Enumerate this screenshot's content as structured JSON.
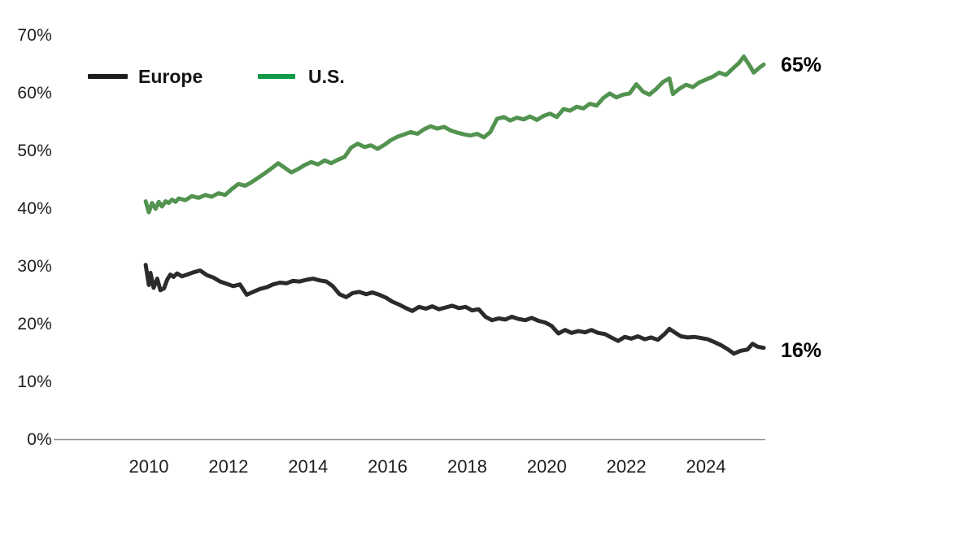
{
  "chart_data": {
    "type": "line",
    "title": "",
    "xlabel": "",
    "ylabel": "",
    "grid": false,
    "legend_position": "top-left-inside",
    "axis_color": "#8f8f8f",
    "xlim": [
      2009.8,
      2025.6
    ],
    "ylim": [
      0,
      70
    ],
    "x_ticks": [
      2010,
      2012,
      2014,
      2016,
      2018,
      2020,
      2022,
      2024
    ],
    "x_tick_labels": [
      "2010",
      "2012",
      "2014",
      "2016",
      "2018",
      "2020",
      "2022",
      "2024"
    ],
    "y_ticks": [
      0,
      10,
      20,
      30,
      40,
      50,
      60,
      70
    ],
    "y_tick_labels": [
      "0%",
      "10%",
      "20%",
      "30%",
      "40%",
      "50%",
      "60%",
      "70%"
    ],
    "series": [
      {
        "name": "Europe",
        "color": "#2b2b2d",
        "swatch_color": "#1d1d1f",
        "end_label": "16%",
        "points": [
          [
            2009.92,
            30.3
          ],
          [
            2010.0,
            26.8
          ],
          [
            2010.04,
            28.9
          ],
          [
            2010.12,
            26.3
          ],
          [
            2010.21,
            27.9
          ],
          [
            2010.29,
            25.9
          ],
          [
            2010.38,
            26.2
          ],
          [
            2010.46,
            27.7
          ],
          [
            2010.54,
            28.6
          ],
          [
            2010.62,
            28.2
          ],
          [
            2010.71,
            28.8
          ],
          [
            2010.83,
            28.3
          ],
          [
            2010.96,
            28.6
          ],
          [
            2011.12,
            29.0
          ],
          [
            2011.29,
            29.3
          ],
          [
            2011.46,
            28.5
          ],
          [
            2011.62,
            28.1
          ],
          [
            2011.79,
            27.4
          ],
          [
            2011.96,
            27.0
          ],
          [
            2012.12,
            26.6
          ],
          [
            2012.29,
            26.9
          ],
          [
            2012.46,
            25.1
          ],
          [
            2012.62,
            25.6
          ],
          [
            2012.79,
            26.1
          ],
          [
            2012.96,
            26.4
          ],
          [
            2013.12,
            26.9
          ],
          [
            2013.29,
            27.2
          ],
          [
            2013.46,
            27.1
          ],
          [
            2013.62,
            27.5
          ],
          [
            2013.79,
            27.4
          ],
          [
            2013.96,
            27.7
          ],
          [
            2014.12,
            27.9
          ],
          [
            2014.29,
            27.6
          ],
          [
            2014.46,
            27.4
          ],
          [
            2014.62,
            26.6
          ],
          [
            2014.79,
            25.2
          ],
          [
            2014.96,
            24.7
          ],
          [
            2015.12,
            25.4
          ],
          [
            2015.29,
            25.6
          ],
          [
            2015.46,
            25.2
          ],
          [
            2015.62,
            25.5
          ],
          [
            2015.79,
            25.1
          ],
          [
            2015.96,
            24.6
          ],
          [
            2016.12,
            23.9
          ],
          [
            2016.29,
            23.4
          ],
          [
            2016.46,
            22.8
          ],
          [
            2016.62,
            22.3
          ],
          [
            2016.79,
            23.0
          ],
          [
            2016.96,
            22.7
          ],
          [
            2017.12,
            23.1
          ],
          [
            2017.29,
            22.6
          ],
          [
            2017.46,
            22.9
          ],
          [
            2017.62,
            23.2
          ],
          [
            2017.79,
            22.8
          ],
          [
            2017.96,
            23.0
          ],
          [
            2018.12,
            22.4
          ],
          [
            2018.29,
            22.6
          ],
          [
            2018.46,
            21.3
          ],
          [
            2018.62,
            20.7
          ],
          [
            2018.79,
            21.0
          ],
          [
            2018.96,
            20.8
          ],
          [
            2019.12,
            21.3
          ],
          [
            2019.29,
            20.9
          ],
          [
            2019.46,
            20.7
          ],
          [
            2019.62,
            21.1
          ],
          [
            2019.79,
            20.6
          ],
          [
            2019.96,
            20.3
          ],
          [
            2020.12,
            19.7
          ],
          [
            2020.29,
            18.4
          ],
          [
            2020.46,
            19.0
          ],
          [
            2020.62,
            18.5
          ],
          [
            2020.79,
            18.8
          ],
          [
            2020.96,
            18.6
          ],
          [
            2021.12,
            19.0
          ],
          [
            2021.29,
            18.5
          ],
          [
            2021.46,
            18.3
          ],
          [
            2021.62,
            17.7
          ],
          [
            2021.79,
            17.1
          ],
          [
            2021.96,
            17.8
          ],
          [
            2022.12,
            17.5
          ],
          [
            2022.29,
            17.9
          ],
          [
            2022.46,
            17.4
          ],
          [
            2022.62,
            17.7
          ],
          [
            2022.79,
            17.3
          ],
          [
            2022.96,
            18.3
          ],
          [
            2023.08,
            19.2
          ],
          [
            2023.21,
            18.6
          ],
          [
            2023.37,
            17.9
          ],
          [
            2023.54,
            17.7
          ],
          [
            2023.71,
            17.8
          ],
          [
            2023.87,
            17.6
          ],
          [
            2024.04,
            17.4
          ],
          [
            2024.21,
            16.9
          ],
          [
            2024.37,
            16.4
          ],
          [
            2024.54,
            15.7
          ],
          [
            2024.7,
            14.9
          ],
          [
            2024.87,
            15.4
          ],
          [
            2025.04,
            15.6
          ],
          [
            2025.17,
            16.6
          ],
          [
            2025.3,
            16.1
          ],
          [
            2025.45,
            15.9
          ]
        ]
      },
      {
        "name": "U.S.",
        "color": "#52934f",
        "swatch_color": "#0e9a47",
        "end_label": "65%",
        "points": [
          [
            2009.92,
            41.3
          ],
          [
            2010.0,
            39.4
          ],
          [
            2010.08,
            41.0
          ],
          [
            2010.17,
            40.0
          ],
          [
            2010.25,
            41.2
          ],
          [
            2010.33,
            40.4
          ],
          [
            2010.42,
            41.3
          ],
          [
            2010.5,
            41.0
          ],
          [
            2010.58,
            41.6
          ],
          [
            2010.67,
            41.2
          ],
          [
            2010.75,
            41.8
          ],
          [
            2010.92,
            41.5
          ],
          [
            2011.08,
            42.2
          ],
          [
            2011.25,
            41.9
          ],
          [
            2011.42,
            42.4
          ],
          [
            2011.58,
            42.1
          ],
          [
            2011.75,
            42.7
          ],
          [
            2011.92,
            42.4
          ],
          [
            2012.08,
            43.4
          ],
          [
            2012.25,
            44.3
          ],
          [
            2012.42,
            44.0
          ],
          [
            2012.58,
            44.6
          ],
          [
            2012.75,
            45.4
          ],
          [
            2012.92,
            46.2
          ],
          [
            2013.08,
            47.0
          ],
          [
            2013.25,
            47.9
          ],
          [
            2013.42,
            47.1
          ],
          [
            2013.58,
            46.3
          ],
          [
            2013.75,
            46.9
          ],
          [
            2013.92,
            47.6
          ],
          [
            2014.08,
            48.1
          ],
          [
            2014.25,
            47.7
          ],
          [
            2014.42,
            48.4
          ],
          [
            2014.58,
            47.9
          ],
          [
            2014.75,
            48.5
          ],
          [
            2014.92,
            49.0
          ],
          [
            2015.08,
            50.6
          ],
          [
            2015.25,
            51.3
          ],
          [
            2015.42,
            50.7
          ],
          [
            2015.58,
            51.0
          ],
          [
            2015.75,
            50.4
          ],
          [
            2015.92,
            51.1
          ],
          [
            2016.08,
            51.9
          ],
          [
            2016.25,
            52.5
          ],
          [
            2016.42,
            52.9
          ],
          [
            2016.58,
            53.3
          ],
          [
            2016.75,
            53.0
          ],
          [
            2016.92,
            53.8
          ],
          [
            2017.08,
            54.3
          ],
          [
            2017.25,
            53.9
          ],
          [
            2017.42,
            54.2
          ],
          [
            2017.58,
            53.6
          ],
          [
            2017.75,
            53.2
          ],
          [
            2017.92,
            52.9
          ],
          [
            2018.08,
            52.7
          ],
          [
            2018.25,
            53.0
          ],
          [
            2018.42,
            52.4
          ],
          [
            2018.58,
            53.3
          ],
          [
            2018.75,
            55.6
          ],
          [
            2018.92,
            55.9
          ],
          [
            2019.08,
            55.3
          ],
          [
            2019.25,
            55.8
          ],
          [
            2019.42,
            55.5
          ],
          [
            2019.58,
            56.0
          ],
          [
            2019.75,
            55.4
          ],
          [
            2019.92,
            56.1
          ],
          [
            2020.08,
            56.5
          ],
          [
            2020.25,
            55.9
          ],
          [
            2020.42,
            57.3
          ],
          [
            2020.58,
            57.0
          ],
          [
            2020.75,
            57.7
          ],
          [
            2020.92,
            57.4
          ],
          [
            2021.08,
            58.2
          ],
          [
            2021.25,
            57.9
          ],
          [
            2021.42,
            59.2
          ],
          [
            2021.58,
            60.0
          ],
          [
            2021.75,
            59.3
          ],
          [
            2021.92,
            59.8
          ],
          [
            2022.08,
            60.0
          ],
          [
            2022.25,
            61.6
          ],
          [
            2022.42,
            60.3
          ],
          [
            2022.58,
            59.8
          ],
          [
            2022.75,
            60.8
          ],
          [
            2022.92,
            62.0
          ],
          [
            2023.08,
            62.6
          ],
          [
            2023.17,
            59.9
          ],
          [
            2023.33,
            60.8
          ],
          [
            2023.5,
            61.5
          ],
          [
            2023.67,
            61.1
          ],
          [
            2023.83,
            61.9
          ],
          [
            2024.0,
            62.4
          ],
          [
            2024.17,
            62.9
          ],
          [
            2024.33,
            63.6
          ],
          [
            2024.5,
            63.2
          ],
          [
            2024.67,
            64.3
          ],
          [
            2024.83,
            65.3
          ],
          [
            2024.95,
            66.4
          ],
          [
            2025.1,
            64.8
          ],
          [
            2025.2,
            63.6
          ],
          [
            2025.35,
            64.5
          ],
          [
            2025.45,
            65.0
          ]
        ]
      }
    ]
  }
}
